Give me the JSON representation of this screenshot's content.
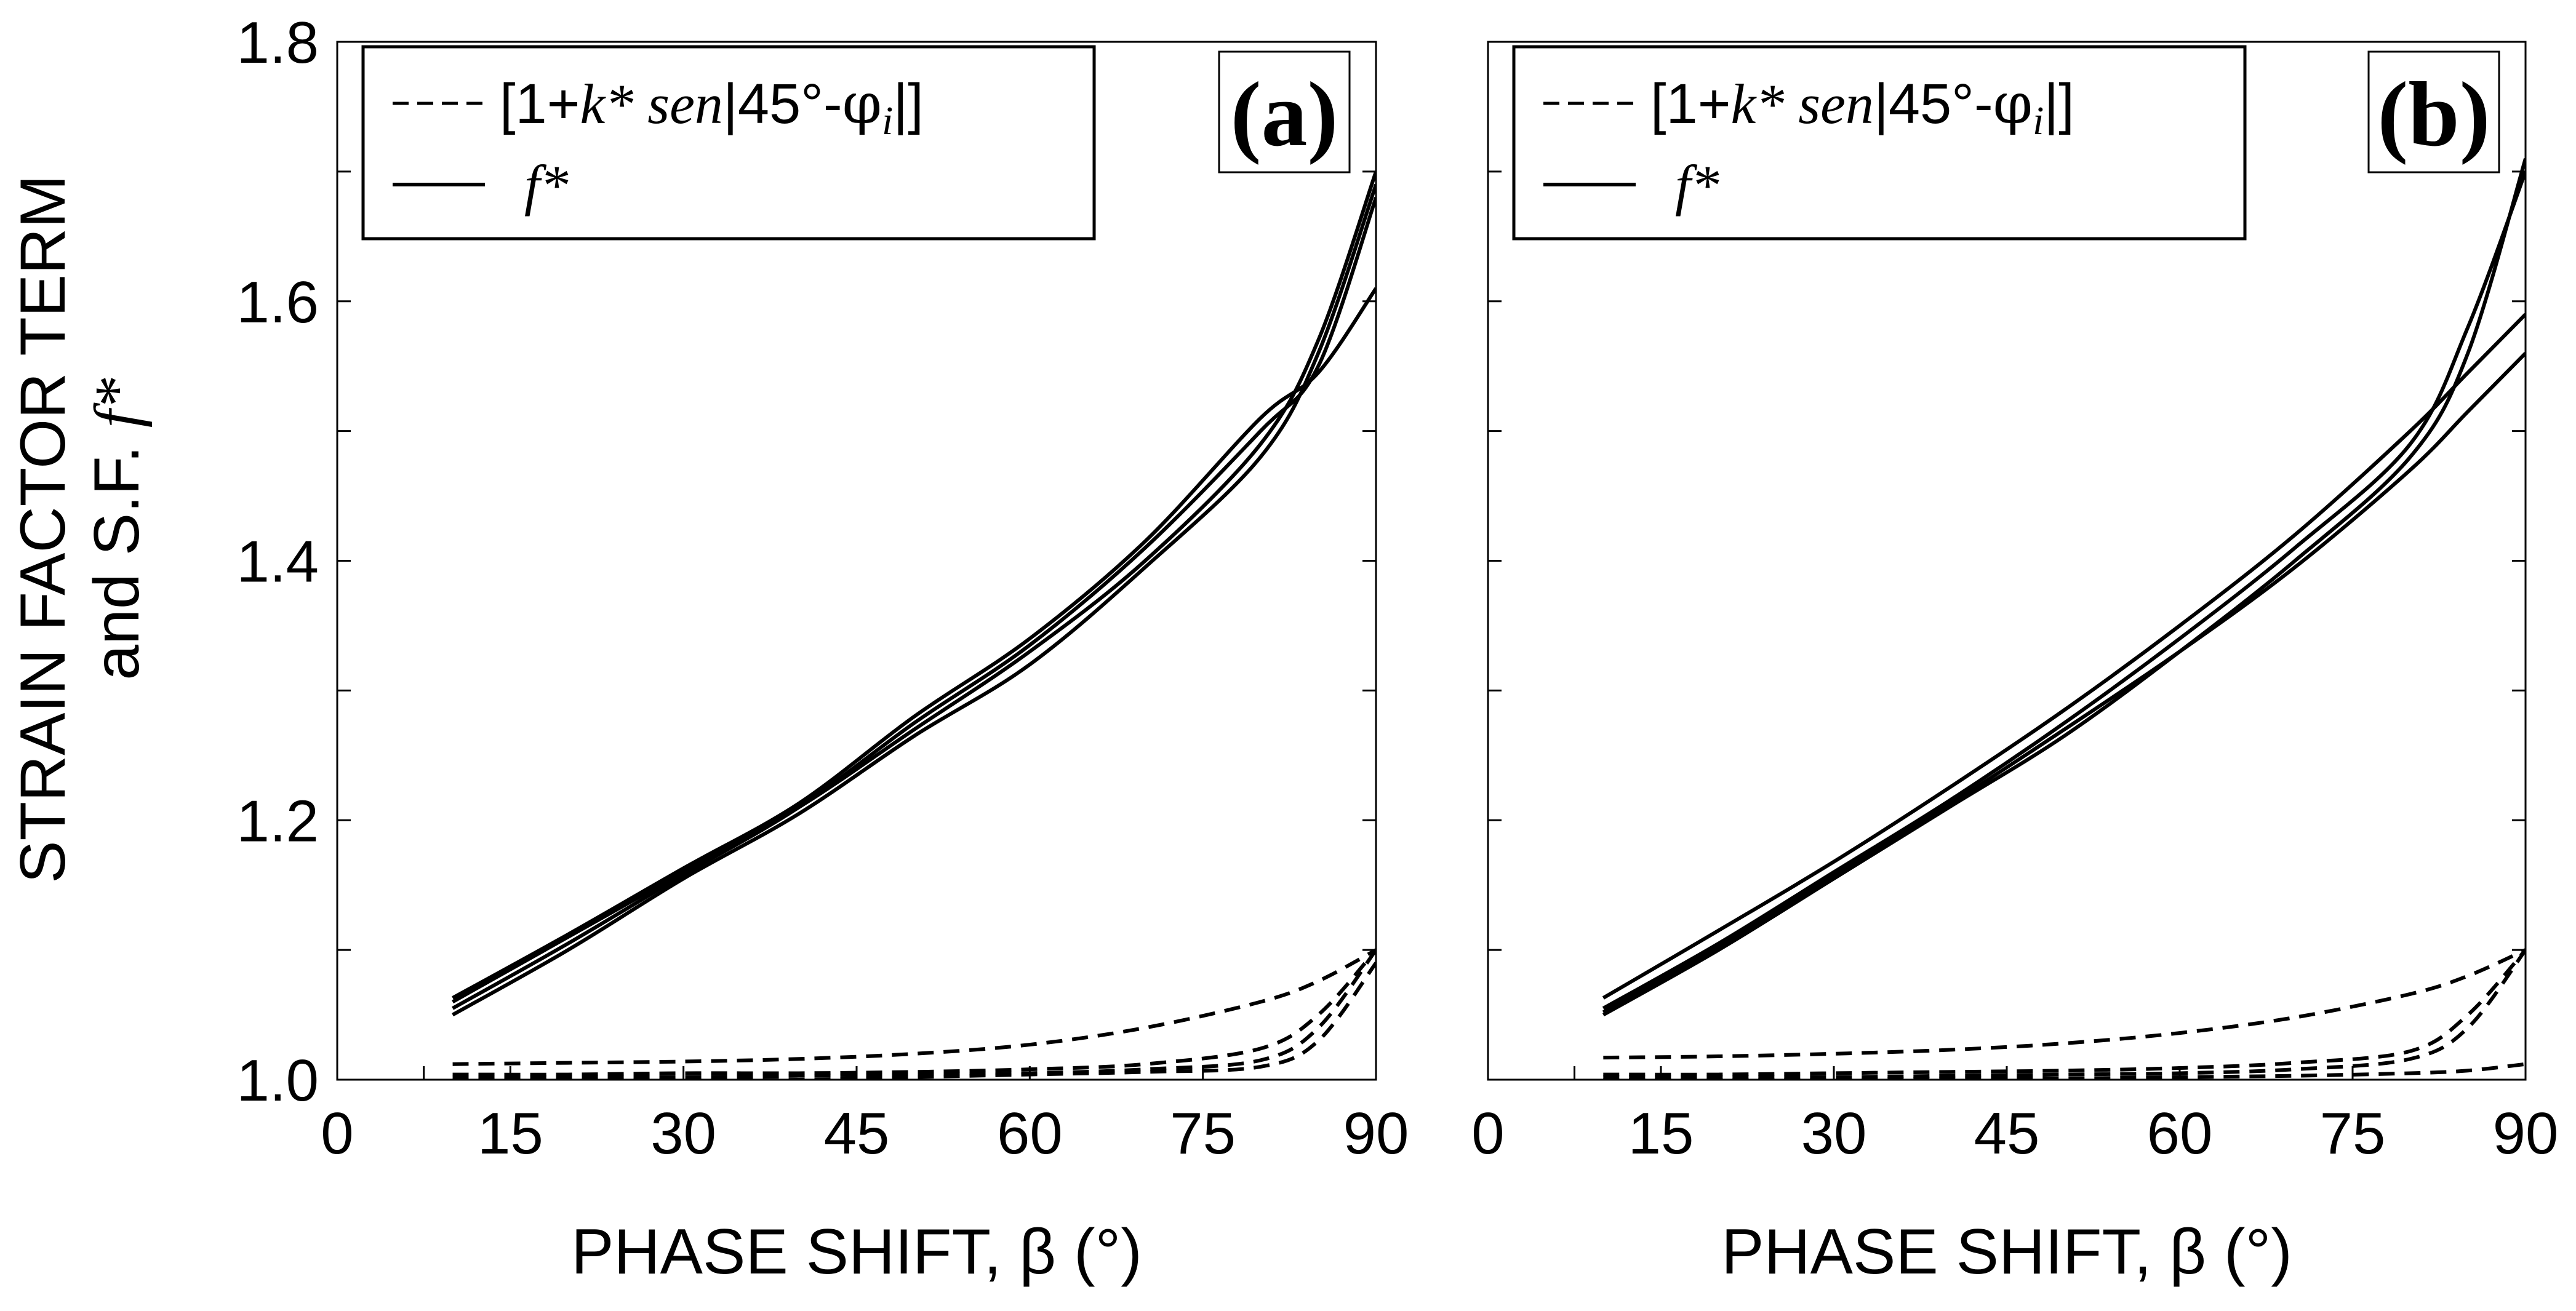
{
  "chart_data": [
    {
      "type": "line",
      "panel": "(a)",
      "xlabel": "PHASE SHIFT, β (°)",
      "ylabel_line1": "STRAIN FACTOR TERM",
      "ylabel_line2": "and S.F. f*",
      "xlim": [
        0,
        90
      ],
      "ylim": [
        1.0,
        1.8
      ],
      "xticks": [
        0,
        15,
        30,
        45,
        60,
        75,
        90
      ],
      "yticks": [
        1.0,
        1.2,
        1.4,
        1.6,
        1.8
      ],
      "xtick_labels": [
        "0",
        "15",
        "30",
        "45",
        "60",
        "75",
        "90"
      ],
      "ytick_labels": [
        "1.0",
        "1.2",
        "1.4",
        "1.6",
        "1.8"
      ],
      "grid": false,
      "legend": {
        "position": "top-left",
        "entries": [
          {
            "style": "dashed",
            "label_prefix": "[1+",
            "label_k": "k*",
            "label_sen": " sen",
            "label_mid": "|45°-",
            "label_phi": "φ",
            "label_sub": "i",
            "label_suffix": "|]"
          },
          {
            "style": "solid",
            "label_f": "f*"
          }
        ]
      },
      "series": [
        {
          "name": "f* curve 1",
          "style": "solid",
          "x": [
            10,
            20,
            30,
            40,
            50,
            60,
            70,
            80,
            85,
            90
          ],
          "y": [
            1.06,
            1.11,
            1.16,
            1.21,
            1.27,
            1.33,
            1.4,
            1.49,
            1.57,
            1.7
          ]
        },
        {
          "name": "f* curve 2",
          "style": "solid",
          "x": [
            10,
            20,
            30,
            40,
            50,
            60,
            70,
            80,
            85,
            90
          ],
          "y": [
            1.05,
            1.1,
            1.155,
            1.205,
            1.265,
            1.32,
            1.395,
            1.48,
            1.56,
            1.69
          ]
        },
        {
          "name": "f* curve 3",
          "style": "solid",
          "x": [
            10,
            20,
            30,
            40,
            50,
            60,
            70,
            80,
            85,
            90
          ],
          "y": [
            1.055,
            1.105,
            1.158,
            1.21,
            1.275,
            1.335,
            1.41,
            1.5,
            1.55,
            1.68
          ]
        },
        {
          "name": "f* curve 4",
          "style": "solid",
          "x": [
            10,
            20,
            30,
            40,
            50,
            60,
            70,
            80,
            85,
            90
          ],
          "y": [
            1.063,
            1.112,
            1.163,
            1.213,
            1.28,
            1.34,
            1.415,
            1.51,
            1.545,
            1.61
          ]
        },
        {
          "name": "bracket term 1",
          "style": "dashed",
          "x": [
            10,
            20,
            30,
            40,
            50,
            60,
            70,
            80,
            85,
            90
          ],
          "y": [
            1.012,
            1.013,
            1.014,
            1.016,
            1.02,
            1.027,
            1.04,
            1.06,
            1.076,
            1.1
          ]
        },
        {
          "name": "bracket term 2",
          "style": "dashed",
          "x": [
            10,
            20,
            30,
            40,
            50,
            60,
            70,
            80,
            85,
            90
          ],
          "y": [
            1.004,
            1.004,
            1.005,
            1.005,
            1.006,
            1.008,
            1.012,
            1.024,
            1.05,
            1.1
          ]
        },
        {
          "name": "bracket term 3",
          "style": "dashed",
          "x": [
            10,
            20,
            30,
            40,
            50,
            60,
            70,
            80,
            85,
            90
          ],
          "y": [
            1.002,
            1.002,
            1.002,
            1.003,
            1.004,
            1.005,
            1.008,
            1.015,
            1.04,
            1.1
          ]
        },
        {
          "name": "bracket term 4",
          "style": "dashed",
          "x": [
            10,
            20,
            30,
            40,
            50,
            60,
            70,
            80,
            85,
            90
          ],
          "y": [
            1.0,
            1.0,
            1.0,
            1.0,
            1.002,
            1.004,
            1.006,
            1.01,
            1.03,
            1.09
          ]
        }
      ]
    },
    {
      "type": "line",
      "panel": "(b)",
      "xlabel": "PHASE SHIFT, β (°)",
      "xlim": [
        0,
        90
      ],
      "ylim": [
        1.0,
        1.8
      ],
      "xticks": [
        0,
        15,
        30,
        45,
        60,
        75,
        90
      ],
      "yticks": [
        1.0,
        1.2,
        1.4,
        1.6,
        1.8
      ],
      "xtick_labels": [
        "0",
        "15",
        "30",
        "45",
        "60",
        "75",
        "90"
      ],
      "grid": false,
      "legend": {
        "position": "top-left",
        "entries": [
          {
            "style": "dashed",
            "label_prefix": "[1+",
            "label_k": "k*",
            "label_sen": " sen",
            "label_mid": "|45°-",
            "label_phi": "φ",
            "label_sub": "i",
            "label_suffix": "|]"
          },
          {
            "style": "solid",
            "label_f": "f*"
          }
        ]
      },
      "series": [
        {
          "name": "f* curve 1",
          "style": "solid",
          "x": [
            10,
            20,
            30,
            40,
            50,
            60,
            70,
            80,
            85,
            90
          ],
          "y": [
            1.063,
            1.115,
            1.168,
            1.225,
            1.285,
            1.35,
            1.42,
            1.5,
            1.545,
            1.59
          ]
        },
        {
          "name": "f* curve 2",
          "style": "solid",
          "x": [
            10,
            20,
            30,
            40,
            50,
            60,
            70,
            80,
            85,
            90
          ],
          "y": [
            1.05,
            1.1,
            1.155,
            1.21,
            1.265,
            1.33,
            1.4,
            1.48,
            1.56,
            1.71
          ]
        },
        {
          "name": "f* curve 3",
          "style": "solid",
          "x": [
            10,
            20,
            30,
            40,
            50,
            60,
            70,
            80,
            85,
            90
          ],
          "y": [
            1.055,
            1.105,
            1.16,
            1.215,
            1.275,
            1.34,
            1.41,
            1.49,
            1.58,
            1.7
          ]
        },
        {
          "name": "f* curve 4",
          "style": "solid",
          "x": [
            10,
            20,
            30,
            40,
            50,
            60,
            70,
            80,
            85,
            90
          ],
          "y": [
            1.052,
            1.103,
            1.157,
            1.212,
            1.27,
            1.33,
            1.395,
            1.47,
            1.515,
            1.56
          ]
        },
        {
          "name": "bracket term 1",
          "style": "dashed",
          "x": [
            10,
            20,
            30,
            40,
            50,
            60,
            70,
            80,
            85,
            90
          ],
          "y": [
            1.017,
            1.018,
            1.02,
            1.023,
            1.028,
            1.036,
            1.048,
            1.066,
            1.08,
            1.1
          ]
        },
        {
          "name": "bracket term 2",
          "style": "dashed",
          "x": [
            10,
            20,
            30,
            40,
            50,
            60,
            70,
            80,
            85,
            90
          ],
          "y": [
            1.004,
            1.004,
            1.005,
            1.006,
            1.007,
            1.009,
            1.013,
            1.022,
            1.05,
            1.1
          ]
        },
        {
          "name": "bracket term 3",
          "style": "dashed",
          "x": [
            10,
            20,
            30,
            40,
            50,
            60,
            70,
            80,
            85,
            90
          ],
          "y": [
            1.002,
            1.002,
            1.002,
            1.003,
            1.004,
            1.005,
            1.008,
            1.016,
            1.04,
            1.1
          ]
        },
        {
          "name": "bracket term 4",
          "style": "dashed",
          "x": [
            10,
            20,
            30,
            40,
            50,
            60,
            70,
            80,
            85,
            90
          ],
          "y": [
            1.0,
            1.0,
            1.0,
            1.001,
            1.001,
            1.002,
            1.003,
            1.005,
            1.007,
            1.012
          ]
        }
      ]
    }
  ]
}
